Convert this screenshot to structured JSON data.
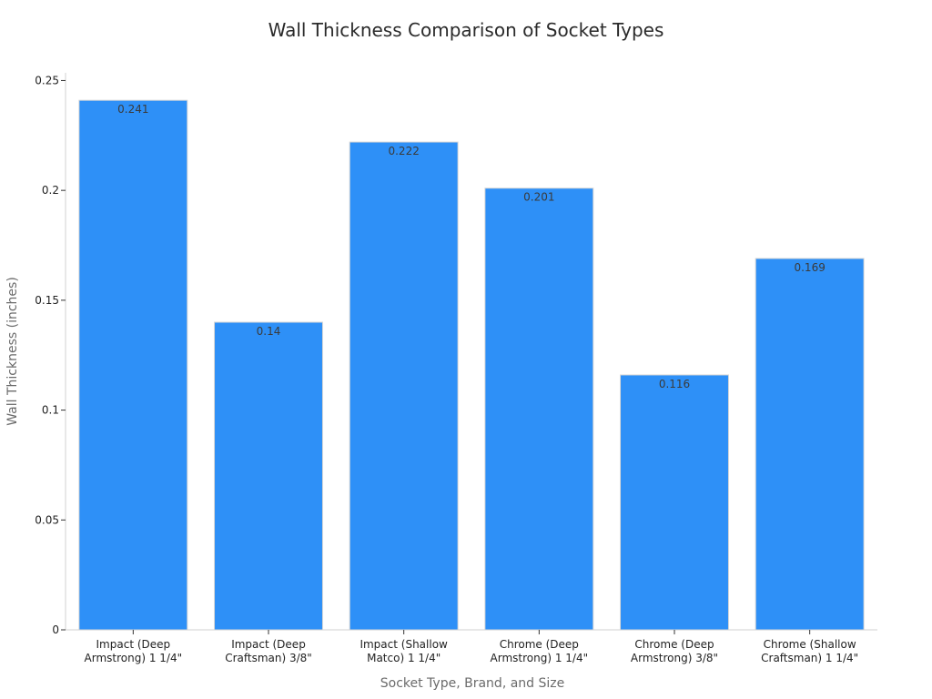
{
  "chart_data": {
    "type": "bar",
    "title": "Wall Thickness Comparison of Socket Types",
    "xlabel": "Socket Type, Brand, and Size",
    "ylabel": "Wall Thickness (inches)",
    "categories": [
      [
        "Impact (Deep",
        "Armstrong) 1 1/4\""
      ],
      [
        "Impact (Deep",
        "Craftsman) 3/8\""
      ],
      [
        "Impact (Shallow",
        "Matco) 1 1/4\""
      ],
      [
        "Chrome (Deep",
        "Armstrong) 1 1/4\""
      ],
      [
        "Chrome (Deep",
        "Armstrong) 3/8\""
      ],
      [
        "Chrome (Shallow",
        "Craftsman) 1 1/4\""
      ]
    ],
    "values": [
      0.241,
      0.14,
      0.222,
      0.201,
      0.116,
      0.169
    ],
    "data_labels": [
      "0.241",
      "0.14",
      "0.222",
      "0.201",
      "0.116",
      "0.169"
    ],
    "yticks": [
      0,
      0.05,
      0.1,
      0.15,
      0.2,
      0.25
    ],
    "ytick_labels": [
      "0",
      "0.05",
      "0.1",
      "0.15",
      "0.2",
      "0.25"
    ],
    "ylim": [
      0,
      0.2535
    ],
    "grid": false,
    "bar_color": "#2e90f7"
  }
}
